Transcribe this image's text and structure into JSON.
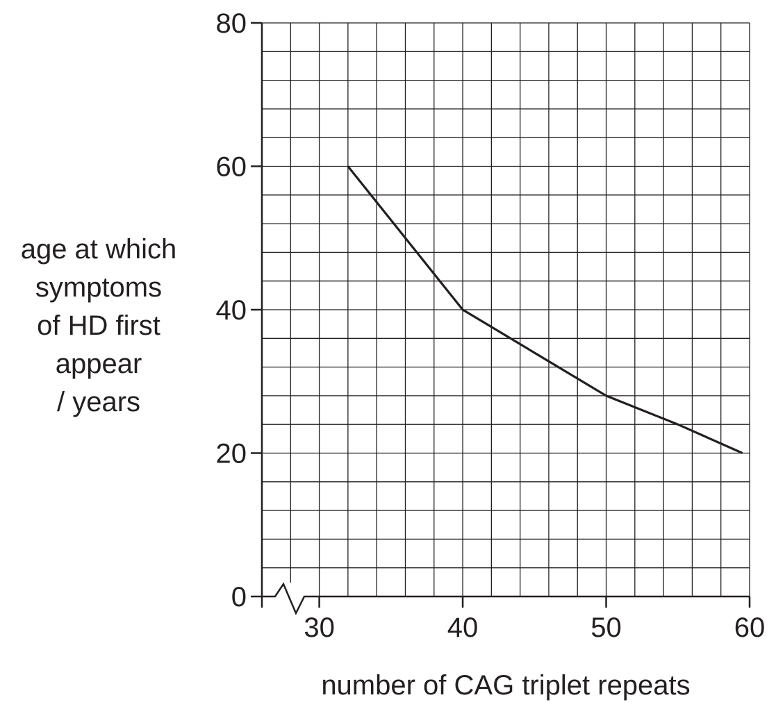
{
  "chart_data": {
    "type": "line",
    "title": "",
    "xlabel": "number of CAG triplet repeats",
    "ylabel": "age at which symptoms of HD first appear / years",
    "ylabel_lines": [
      "age at which",
      "symptoms",
      "of HD first",
      "appear",
      "/ years"
    ],
    "xlim": [
      26,
      60
    ],
    "ylim": [
      0,
      80
    ],
    "x_ticks": [
      30,
      40,
      50,
      60
    ],
    "y_ticks": [
      0,
      20,
      40,
      60,
      80
    ],
    "x_axis_break": true,
    "grid": true,
    "grid_minor_x_step": 2,
    "grid_minor_y_step": 4,
    "series": [
      {
        "x": [
          32,
          36,
          40,
          45,
          50,
          55,
          59.5
        ],
        "y": [
          60,
          50,
          40,
          34,
          28,
          24,
          20
        ]
      }
    ],
    "colors": {
      "line": "#231f20",
      "grid": "#231f20",
      "background": "#ffffff"
    }
  }
}
